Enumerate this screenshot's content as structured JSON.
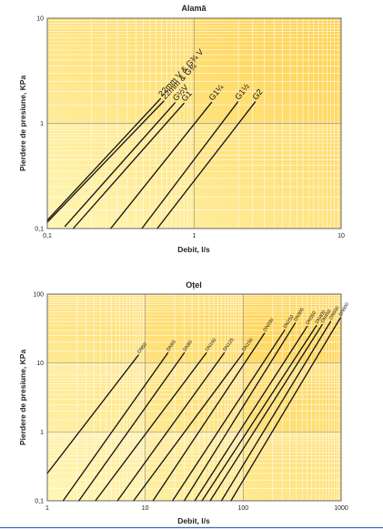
{
  "colors": {
    "bg_light": "#fff7b8",
    "bg_dark": "#ffcf4a",
    "grid_minor": "#fffdf2",
    "grid_major": "#9a9a9a",
    "curve": "#111111",
    "frame": "#555555",
    "bottom_line": "#3a6ea5"
  },
  "chart_data": [
    {
      "type": "line",
      "title": "Alamă",
      "xlabel": "Debit, l/s",
      "ylabel": "Pierdere de presiune, KPa",
      "x_scale": "log",
      "y_scale": "log",
      "xlim": [
        0.1,
        10
      ],
      "ylim": [
        0.1,
        10
      ],
      "x_ticks": [
        "0,1",
        "1",
        "10"
      ],
      "y_ticks": [
        "0,1",
        "1",
        "10"
      ],
      "series": [
        {
          "name": "22mm V & G¾ V",
          "x": [
            0.1,
            0.59
          ],
          "y": [
            0.12,
            1.72
          ]
        },
        {
          "name": "22mm & G¾",
          "x": [
            0.1,
            0.62
          ],
          "y": [
            0.115,
            1.63
          ]
        },
        {
          "name": "G½V",
          "x": [
            0.132,
            0.74
          ],
          "y": [
            0.105,
            1.57
          ]
        },
        {
          "name": "G1",
          "x": [
            0.15,
            0.85
          ],
          "y": [
            0.1,
            1.55
          ]
        },
        {
          "name": "G1¼",
          "x": [
            0.27,
            1.31
          ],
          "y": [
            0.1,
            1.58
          ]
        },
        {
          "name": "G1½",
          "x": [
            0.44,
            1.98
          ],
          "y": [
            0.1,
            1.6
          ]
        },
        {
          "name": "G2",
          "x": [
            0.56,
            2.6
          ],
          "y": [
            0.1,
            1.6
          ]
        }
      ]
    },
    {
      "type": "line",
      "title": "Oțel",
      "xlabel": "Debit, l/s",
      "ylabel": "Pierdere de presiune, KPa",
      "x_scale": "log",
      "y_scale": "log",
      "xlim": [
        1,
        1000
      ],
      "ylim": [
        0.1,
        100
      ],
      "x_ticks": [
        "1",
        "10",
        "100",
        "1000"
      ],
      "y_ticks": [
        "0,1",
        "1",
        "10",
        "100"
      ],
      "series": [
        {
          "name": "DN50",
          "x": [
            1,
            8.5
          ],
          "y": [
            0.25,
            13
          ]
        },
        {
          "name": "DN65",
          "x": [
            1.45,
            17
          ],
          "y": [
            0.1,
            14
          ]
        },
        {
          "name": "DN80",
          "x": [
            2.1,
            25
          ],
          "y": [
            0.1,
            14
          ]
        },
        {
          "name": "DN100",
          "x": [
            3.1,
            42
          ],
          "y": [
            0.1,
            14
          ]
        },
        {
          "name": "DN125",
          "x": [
            5.2,
            64
          ],
          "y": [
            0.1,
            14
          ]
        },
        {
          "name": "DN150",
          "x": [
            7.6,
            100
          ],
          "y": [
            0.1,
            14
          ]
        },
        {
          "name": "DN200",
          "x": [
            12,
            165
          ],
          "y": [
            0.1,
            27
          ]
        },
        {
          "name": "DN250",
          "x": [
            19,
            265
          ],
          "y": [
            0.1,
            30
          ]
        },
        {
          "name": "DN300",
          "x": [
            25,
            340
          ],
          "y": [
            0.1,
            38
          ]
        },
        {
          "name": "DN350",
          "x": [
            32,
            450
          ],
          "y": [
            0.1,
            34
          ]
        },
        {
          "name": "DN400",
          "x": [
            38,
            560
          ],
          "y": [
            0.1,
            35
          ]
        },
        {
          "name": "DN450",
          "x": [
            46,
            640
          ],
          "y": [
            0.1,
            36
          ]
        },
        {
          "name": "DN500",
          "x": [
            60,
            780
          ],
          "y": [
            0.1,
            40
          ]
        },
        {
          "name": "DN600",
          "x": [
            75,
            980
          ],
          "y": [
            0.1,
            45
          ]
        }
      ]
    }
  ]
}
